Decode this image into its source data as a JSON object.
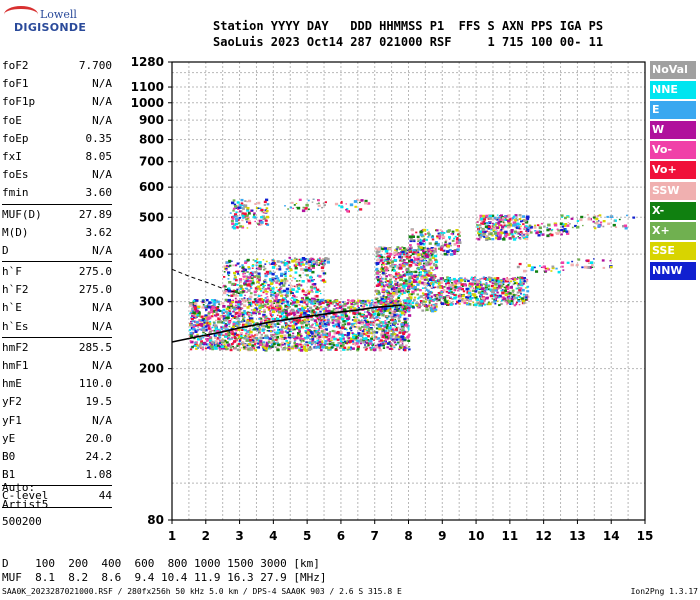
{
  "logo": {
    "line1": "Lowell",
    "line2": "DIGISONDE"
  },
  "header": {
    "line1": "Station YYYY DAY   DDD HHMMSS P1  FFS S AXN PPS IGA PS",
    "line2": "SaoLuis 2023 Oct14 287 021000 RSF     1 715 100 00- 11"
  },
  "params": {
    "group1": [
      {
        "label": "foF2",
        "value": "7.700"
      },
      {
        "label": "foF1",
        "value": "N/A"
      },
      {
        "label": "foF1p",
        "value": "N/A"
      },
      {
        "label": "foE",
        "value": "N/A"
      },
      {
        "label": "foEp",
        "value": "0.35"
      },
      {
        "label": "fxI",
        "value": "8.05"
      },
      {
        "label": "foEs",
        "value": "N/A"
      },
      {
        "label": "fmin",
        "value": "3.60"
      }
    ],
    "group2": [
      {
        "label": "MUF(D)",
        "value": "27.89"
      },
      {
        "label": "M(D)",
        "value": "3.62"
      },
      {
        "label": "D",
        "value": "N/A"
      }
    ],
    "group3": [
      {
        "label": "h`F",
        "value": "275.0"
      },
      {
        "label": "h`F2",
        "value": "275.0"
      },
      {
        "label": "h`E",
        "value": "N/A"
      },
      {
        "label": "h`Es",
        "value": "N/A"
      }
    ],
    "group4": [
      {
        "label": "hmF2",
        "value": "285.5"
      },
      {
        "label": "hmF1",
        "value": "N/A"
      },
      {
        "label": "hmE",
        "value": "110.0"
      },
      {
        "label": "yF2",
        "value": "19.5"
      },
      {
        "label": "yF1",
        "value": "N/A"
      },
      {
        "label": "yE",
        "value": "20.0"
      },
      {
        "label": "B0",
        "value": "24.2"
      },
      {
        "label": "B1",
        "value": "1.08"
      }
    ],
    "group5": [
      {
        "label": "C-level",
        "value": "44"
      }
    ]
  },
  "auto": {
    "line1": "Auto:",
    "line2": "Artist5",
    "line3": "500200"
  },
  "dtable": {
    "line1": "D    100  200  400  600  800 1000 1500 3000 [km]",
    "line2": "MUF  8.1  8.2  8.6  9.4 10.4 11.9 16.3 27.9 [MHz]"
  },
  "footer": {
    "left": "SAA0K_2023287021000.RSF / 280fx256h 50 kHz 5.0 km / DPS-4 SAA0K 903 / 2.6 S 315.8 E",
    "right": "Ion2Png 1.3.17"
  },
  "legend": [
    {
      "label": "NoVal",
      "color": "#a0a0a0"
    },
    {
      "label": "NNE",
      "color": "#00e5f0"
    },
    {
      "label": "E",
      "color": "#3aa8f0"
    },
    {
      "label": "W",
      "color": "#b0109c"
    },
    {
      "label": "Vo-",
      "color": "#f040a8"
    },
    {
      "label": "Vo+",
      "color": "#f0103a"
    },
    {
      "label": "SSW",
      "color": "#f0b0b0"
    },
    {
      "label": "X-",
      "color": "#108010"
    },
    {
      "label": "X+",
      "color": "#70b050"
    },
    {
      "label": "SSE",
      "color": "#d8d400"
    },
    {
      "label": "NNW",
      "color": "#1020d0"
    }
  ],
  "chart_data": {
    "type": "scatter",
    "title": "",
    "xlabel": "",
    "ylabel": "",
    "xlim": [
      1,
      15
    ],
    "ylim": [
      80,
      1280
    ],
    "y_scale": "log",
    "grid": true,
    "legend_placement": "right",
    "x_ticks": [
      1,
      2,
      3,
      4,
      5,
      6,
      7,
      8,
      9,
      10,
      11,
      12,
      13,
      14,
      15
    ],
    "y_ticks": [
      80,
      200,
      300,
      400,
      500,
      600,
      700,
      800,
      900,
      1000,
      1100,
      1280
    ],
    "series": [
      {
        "name": "O-trace profile",
        "color": "#000000",
        "x": [
          1.0,
          1.5,
          2.0,
          2.5,
          3.0,
          3.5,
          4.0,
          4.5,
          5.0,
          5.5,
          6.0,
          6.5,
          7.0,
          7.5,
          7.8
        ],
        "y": [
          235,
          240,
          245,
          250,
          256,
          261,
          266,
          270,
          274,
          278,
          282,
          285,
          290,
          292,
          294
        ]
      },
      {
        "name": "Extrapolated profile",
        "color": "#000000",
        "x": [
          1.0,
          1.5,
          2.0,
          2.5,
          3.0
        ],
        "y": [
          365,
          350,
          338,
          325,
          315
        ]
      }
    ],
    "echo_regions": [
      {
        "x": [
          1.5,
          8.0
        ],
        "y": [
          225,
          305
        ],
        "density": "high"
      },
      {
        "x": [
          2.5,
          5.5
        ],
        "y": [
          300,
          390
        ],
        "density": "medium"
      },
      {
        "x": [
          7.0,
          8.8
        ],
        "y": [
          285,
          420
        ],
        "density": "high"
      },
      {
        "x": [
          8.8,
          11.5
        ],
        "y": [
          295,
          350
        ],
        "density": "high"
      },
      {
        "x": [
          8.0,
          9.5
        ],
        "y": [
          400,
          470
        ],
        "density": "medium"
      },
      {
        "x": [
          10.0,
          11.5
        ],
        "y": [
          440,
          510
        ],
        "density": "high"
      },
      {
        "x": [
          11.5,
          12.7
        ],
        "y": [
          450,
          485
        ],
        "density": "medium"
      },
      {
        "x": [
          12.5,
          14.7
        ],
        "y": [
          470,
          510
        ],
        "density": "low"
      },
      {
        "x": [
          4.3,
          5.6
        ],
        "y": [
          375,
          395
        ],
        "density": "medium"
      },
      {
        "x": [
          2.7,
          3.8
        ],
        "y": [
          470,
          560
        ],
        "density": "medium"
      },
      {
        "x": [
          4.3,
          6.8
        ],
        "y": [
          520,
          560
        ],
        "density": "low"
      },
      {
        "x": [
          11.2,
          12.6
        ],
        "y": [
          360,
          380
        ],
        "density": "low"
      },
      {
        "x": [
          12.5,
          14.0
        ],
        "y": [
          370,
          390
        ],
        "density": "low"
      }
    ]
  }
}
